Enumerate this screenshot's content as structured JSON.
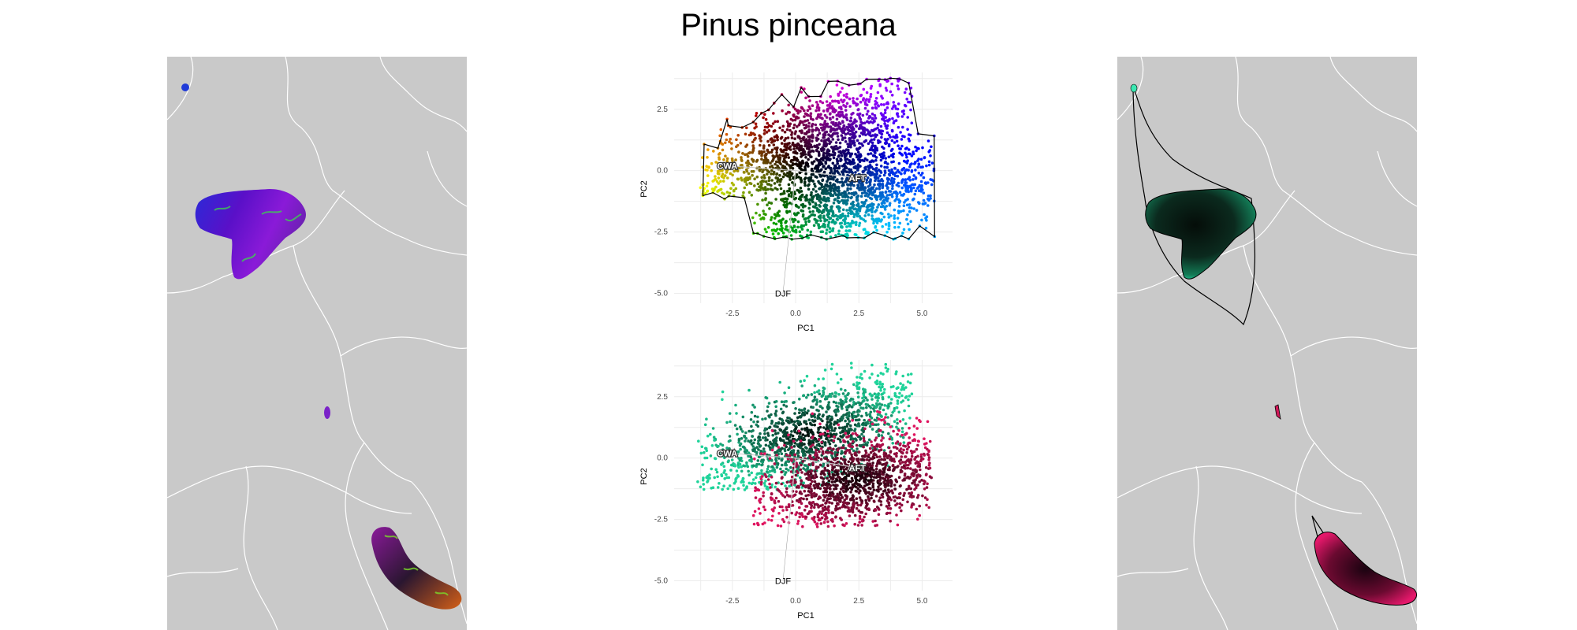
{
  "title": "Pinus pinceana",
  "colors": {
    "map_background": "#c9c9c9",
    "borders": "#ffffff",
    "gridlines": "#ececec",
    "vector_line": "#ffffff",
    "species_green": "#1fd39a",
    "species_pink": "#e0145f"
  },
  "chart_data": [
    {
      "type": "scatter",
      "panel": "pca-top",
      "xlabel": "PC1",
      "ylabel": "PC2",
      "xlim": [
        -4.8,
        6.2
      ],
      "ylim": [
        -5.4,
        4.0
      ],
      "xticks": [
        -2.5,
        0.0,
        2.5,
        5.0
      ],
      "xtick_labels": [
        "-2.5",
        "0.0",
        "2.5",
        "5.0"
      ],
      "yticks": [
        -5.0,
        -2.5,
        0.0,
        2.5
      ],
      "ytick_labels": [
        "-5.0",
        "-2.5",
        "0.0",
        "2.5"
      ],
      "grid": true,
      "coloring": "continuous RGB by position in PC space",
      "vectors": [
        {
          "label": "CWA",
          "x": -2.7,
          "y": 0.2
        },
        {
          "label": "AFT",
          "x": 2.5,
          "y": -0.3
        },
        {
          "label": "DJF",
          "x": -0.5,
          "y": -5.0
        }
      ],
      "point_clouds": [
        {
          "center": [
            0.6,
            1.1
          ],
          "spread": [
            2.6,
            0.9
          ],
          "angle_deg": 22,
          "range": [
            [
              -3.9,
              4.6
            ],
            [
              -1.2,
              3.8
            ]
          ]
        },
        {
          "center": [
            2.3,
            -1.0
          ],
          "spread": [
            2.2,
            1.0
          ],
          "angle_deg": 18,
          "range": [
            [
              -1.7,
              5.5
            ],
            [
              -2.8,
              1.7
            ]
          ]
        }
      ],
      "hull": true
    },
    {
      "type": "scatter",
      "panel": "pca-bottom",
      "xlabel": "PC1",
      "ylabel": "PC2",
      "xlim": [
        -4.8,
        6.2
      ],
      "ylim": [
        -5.4,
        4.0
      ],
      "xticks": [
        -2.5,
        0.0,
        2.5,
        5.0
      ],
      "xtick_labels": [
        "-2.5",
        "0.0",
        "2.5",
        "5.0"
      ],
      "yticks": [
        -5.0,
        -2.5,
        0.0,
        2.5
      ],
      "ytick_labels": [
        "-5.0",
        "-2.5",
        "0.0",
        "2.5"
      ],
      "grid": true,
      "series": [
        {
          "color": "#1fd39a",
          "center": [
            0.6,
            1.0
          ],
          "spread": [
            2.6,
            0.9
          ],
          "angle_deg": 23,
          "range": [
            [
              -3.9,
              4.6
            ],
            [
              -1.3,
              3.9
            ]
          ]
        },
        {
          "color": "#e0145f",
          "center": [
            2.4,
            -0.9
          ],
          "spread": [
            2.0,
            1.0
          ],
          "angle_deg": 15,
          "range": [
            [
              -1.7,
              5.4
            ],
            [
              -2.8,
              1.9
            ]
          ]
        }
      ],
      "vectors": [
        {
          "label": "CWA",
          "x": -2.7,
          "y": 0.2
        },
        {
          "label": "AFT",
          "x": 2.5,
          "y": -0.4
        },
        {
          "label": "DJF",
          "x": -0.5,
          "y": -5.0
        }
      ]
    }
  ]
}
